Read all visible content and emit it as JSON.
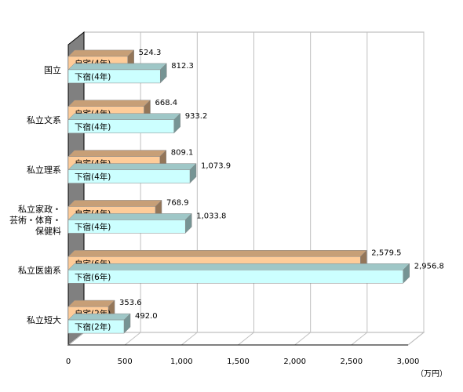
{
  "chart_data": {
    "type": "bar",
    "orientation": "horizontal",
    "categories": [
      "国立",
      "私立文系",
      "私立理系",
      "私立家政・芸術・体育・保健料",
      "私立医歯系",
      "私立短大"
    ],
    "category_lines": [
      [
        "国立"
      ],
      [
        "私立文系"
      ],
      [
        "私立理系"
      ],
      [
        "私立家政・",
        "芸術・体育・",
        "保健料"
      ],
      [
        "私立医歯系"
      ],
      [
        "私立短大"
      ]
    ],
    "series": [
      {
        "key": "jitaku",
        "color": "#FFCC99",
        "labels": [
          "自宅(4年)",
          "自宅(4年)",
          "自宅(4年)",
          "自宅(4年)",
          "自宅(6年)",
          "自宅(2年)"
        ],
        "values": [
          524.3,
          668.4,
          809.1,
          768.9,
          2579.5,
          353.6
        ],
        "value_labels": [
          "524.3",
          "668.4",
          "809.1",
          "768.9",
          "2,579.5",
          "353.6"
        ]
      },
      {
        "key": "geshuku",
        "color": "#CCFFFF",
        "labels": [
          "下宿(4年)",
          "下宿(4年)",
          "下宿(4年)",
          "下宿(4年)",
          "下宿(6年)",
          "下宿(2年)"
        ],
        "values": [
          812.3,
          933.2,
          1073.9,
          1033.8,
          2956.8,
          492.0
        ],
        "value_labels": [
          "812.3",
          "933.2",
          "1,073.9",
          "1,033.8",
          "2,956.8",
          "492.0"
        ]
      }
    ],
    "xlim": [
      0,
      3000
    ],
    "x_ticks": [
      0,
      500,
      1000,
      1500,
      2000,
      2500,
      3000
    ],
    "x_tick_labels": [
      "0",
      "500",
      "1,000",
      "1,500",
      "2,000",
      "2,500",
      "3,000"
    ],
    "unit_label": "（万円）",
    "grid": true
  }
}
